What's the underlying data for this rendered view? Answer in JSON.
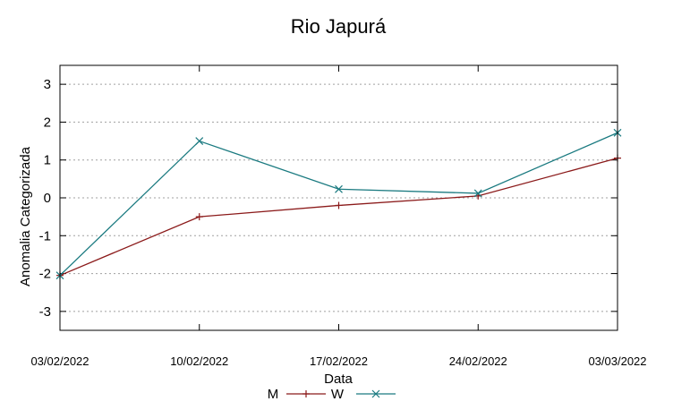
{
  "chart_data": {
    "type": "line",
    "title": "Rio Japurá",
    "xlabel": "Data",
    "ylabel": "Anomalia Categorizada",
    "categories": [
      "03/02/2022",
      "10/02/2022",
      "17/02/2022",
      "24/02/2022",
      "03/03/2022"
    ],
    "ylim": [
      -3.5,
      3.5
    ],
    "yticks": [
      3,
      2,
      1,
      0,
      -1,
      -2,
      -3
    ],
    "ytick_labels": [
      "3",
      "2",
      "1",
      "0",
      "-1",
      "-2",
      "-3"
    ],
    "grid": true,
    "legend_position": "bottom",
    "series": [
      {
        "name": "M",
        "color": "#8b1a1a",
        "marker": "plus",
        "values": [
          -2.05,
          -0.5,
          -0.2,
          0.05,
          1.05
        ]
      },
      {
        "name": "W",
        "color": "#1a7a80",
        "marker": "cross",
        "values": [
          -2.05,
          1.5,
          0.23,
          0.12,
          1.72
        ]
      }
    ]
  }
}
